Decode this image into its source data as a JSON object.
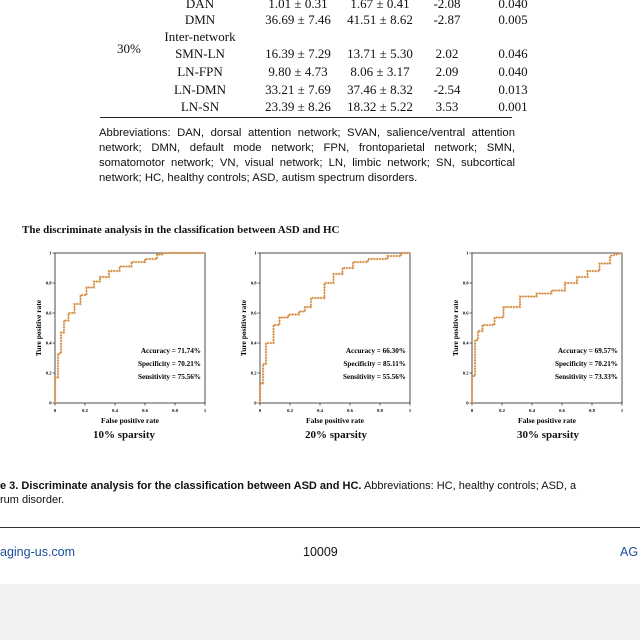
{
  "table": {
    "group_label": "30%",
    "rows": [
      {
        "name": "DAN",
        "a": "1.01 ± 0.31",
        "b": "1.67 ± 0.41",
        "t": "-2.08",
        "p": "0.040"
      },
      {
        "name": "DMN",
        "a": "36.69 ± 7.46",
        "b": "41.51 ± 8.62",
        "t": "-2.87",
        "p": "0.005"
      },
      {
        "name": "Inter-network",
        "a": "",
        "b": "",
        "t": "",
        "p": ""
      },
      {
        "name": "SMN-LN",
        "a": "16.39 ± 7.29",
        "b": "13.71 ± 5.30",
        "t": "2.02",
        "p": "0.046"
      },
      {
        "name": "LN-FPN",
        "a": "9.80 ± 4.73",
        "b": "8.06 ± 3.17",
        "t": "2.09",
        "p": "0.040"
      },
      {
        "name": "LN-DMN",
        "a": "33.21 ± 7.69",
        "b": "37.46 ± 8.32",
        "t": "-2.54",
        "p": "0.013"
      },
      {
        "name": "LN-SN",
        "a": "23.39 ± 8.26",
        "b": "18.32 ± 5.22",
        "t": "3.53",
        "p": "0.001"
      }
    ]
  },
  "abbreviations": "Abbreviations: DAN, dorsal attention network; SVAN, salience/ventral attention network; DMN, default mode network; FPN, frontoparietal network; SMN, somatomotor network; VN, visual network; LN, limbic network; SN, subcortical network; HC, healthy controls; ASD, autism spectrum disorders.",
  "figure_title": "The discriminate analysis in the classification between ASD and HC",
  "chart_data": [
    {
      "type": "line",
      "ylabel": "Ture positive rate",
      "xlabel": "False positive rate",
      "x_ticks": [
        "0",
        "0.2",
        "0.4",
        "0.6",
        "0.8",
        "1"
      ],
      "y_ticks": [
        "0",
        "0.2",
        "0.4",
        "0.6",
        "0.8",
        "1"
      ],
      "xlim": [
        0,
        1
      ],
      "ylim": [
        0,
        1
      ],
      "stats": [
        "Accuracy = 71.74%",
        "Specificity = 70.21%",
        "Sensitivity = 75.56%"
      ],
      "label": "10% sparsity",
      "series": [
        {
          "x": [
            0,
            0,
            0.02,
            0.02,
            0.04,
            0.04,
            0.06,
            0.06,
            0.09,
            0.09,
            0.13,
            0.13,
            0.17,
            0.17,
            0.21,
            0.21,
            0.26,
            0.26,
            0.3,
            0.3,
            0.36,
            0.36,
            0.43,
            0.43,
            0.51,
            0.51,
            0.6,
            0.6,
            0.68,
            0.68,
            0.72,
            0.72,
            1.0
          ],
          "y": [
            0,
            0.17,
            0.17,
            0.33,
            0.33,
            0.47,
            0.47,
            0.55,
            0.55,
            0.6,
            0.6,
            0.66,
            0.66,
            0.72,
            0.72,
            0.77,
            0.77,
            0.81,
            0.81,
            0.84,
            0.84,
            0.88,
            0.88,
            0.91,
            0.91,
            0.94,
            0.94,
            0.96,
            0.96,
            0.99,
            0.99,
            1.0,
            1.0
          ]
        }
      ]
    },
    {
      "type": "line",
      "ylabel": "Ture positive rate",
      "xlabel": "False positive rate",
      "x_ticks": [
        "0",
        "0.2",
        "0.4",
        "0.6",
        "0.8",
        "1"
      ],
      "y_ticks": [
        "0",
        "0.2",
        "0.4",
        "0.6",
        "0.8",
        "1"
      ],
      "xlim": [
        0,
        1
      ],
      "ylim": [
        0,
        1
      ],
      "stats": [
        "Accuracy = 66.30%",
        "Specificity = 85.11%",
        "Sensitivity = 55.56%"
      ],
      "label": "20% sparsity",
      "series": [
        {
          "x": [
            0,
            0,
            0.02,
            0.02,
            0.04,
            0.04,
            0.09,
            0.09,
            0.13,
            0.13,
            0.19,
            0.19,
            0.26,
            0.26,
            0.3,
            0.3,
            0.34,
            0.34,
            0.43,
            0.43,
            0.49,
            0.49,
            0.55,
            0.55,
            0.62,
            0.62,
            0.72,
            0.72,
            0.85,
            0.85,
            0.94,
            0.94,
            1.0
          ],
          "y": [
            0,
            0.13,
            0.13,
            0.26,
            0.26,
            0.4,
            0.4,
            0.52,
            0.52,
            0.57,
            0.57,
            0.59,
            0.59,
            0.61,
            0.61,
            0.64,
            0.64,
            0.7,
            0.7,
            0.8,
            0.8,
            0.86,
            0.86,
            0.9,
            0.9,
            0.94,
            0.94,
            0.96,
            0.96,
            0.98,
            0.98,
            1.0,
            1.0
          ]
        }
      ]
    },
    {
      "type": "line",
      "ylabel": "Ture positive rate",
      "xlabel": "False positive rate",
      "x_ticks": [
        "0",
        "0.2",
        "0.4",
        "0.6",
        "0.8",
        "1"
      ],
      "y_ticks": [
        "0",
        "0.2",
        "0.4",
        "0.6",
        "0.8",
        "1"
      ],
      "xlim": [
        0,
        1
      ],
      "ylim": [
        0,
        1
      ],
      "stats": [
        "Accuracy = 69.57%",
        "Specificity = 70.21%",
        "Sensitivity = 73.33%"
      ],
      "label": "30% sparsity",
      "series": [
        {
          "x": [
            0,
            0,
            0.02,
            0.02,
            0.04,
            0.04,
            0.07,
            0.07,
            0.15,
            0.15,
            0.21,
            0.21,
            0.32,
            0.32,
            0.43,
            0.43,
            0.53,
            0.53,
            0.62,
            0.62,
            0.7,
            0.7,
            0.77,
            0.77,
            0.85,
            0.85,
            0.92,
            0.92,
            1.0
          ],
          "y": [
            0,
            0.18,
            0.18,
            0.42,
            0.42,
            0.48,
            0.48,
            0.52,
            0.52,
            0.57,
            0.57,
            0.64,
            0.64,
            0.71,
            0.71,
            0.73,
            0.73,
            0.75,
            0.75,
            0.8,
            0.8,
            0.84,
            0.84,
            0.88,
            0.88,
            0.93,
            0.93,
            0.98,
            1.0
          ]
        }
      ]
    }
  ],
  "caption": {
    "prefix": "e 3. ",
    "bold": "Discriminate analysis for the classification between ASD and HC.",
    "rest": " Abbreviations: HC, healthy controls; ASD, a",
    "line2": "rum disorder."
  },
  "footer": {
    "left": "aging-us.com",
    "center": "10009",
    "right": "AG"
  }
}
